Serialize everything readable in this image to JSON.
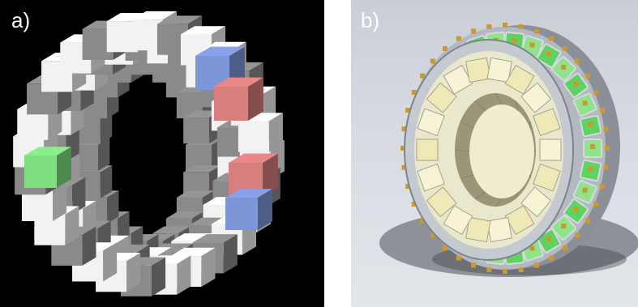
{
  "panels": [
    {
      "label": "a)"
    },
    {
      "label": "b)"
    }
  ],
  "colors": {
    "background_a": "#000000",
    "cube_white": "#f2f2f2",
    "cube_gray": "#8a8a8a",
    "cube_blue": "#7d96d8",
    "cube_red": "#d97e7e",
    "cube_green": "#7fde7f",
    "module_green": "#5fd35f",
    "crystal_yellow": "#efe9b8",
    "connector_gold": "#c99a2e"
  }
}
